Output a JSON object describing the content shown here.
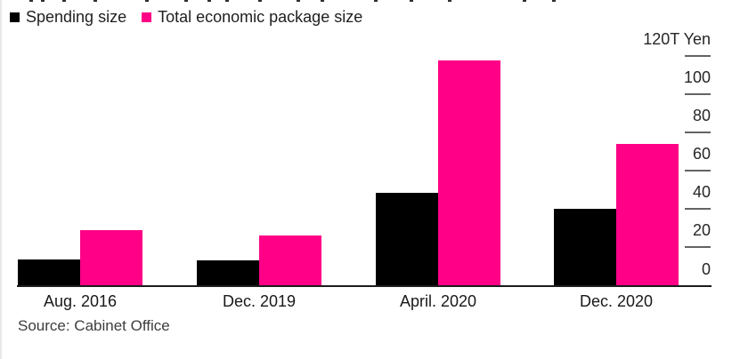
{
  "page": {
    "background": "#ffffff",
    "left_edge_color": "#e9e9e9"
  },
  "legend": {
    "items": [
      {
        "label": "Spending size",
        "color": "#000000",
        "swatch_icon": "square-swatch-icon"
      },
      {
        "label": "Total economic package size",
        "color": "#ff0087",
        "swatch_icon": "square-swatch-icon"
      }
    ]
  },
  "chart_data": {
    "type": "bar",
    "title": "",
    "categories": [
      "Aug. 2016",
      "Dec. 2019",
      "April. 2020",
      "Dec. 2020"
    ],
    "series": [
      {
        "name": "Spending size",
        "color": "#000000",
        "values": [
          13.5,
          13,
          48,
          40
        ]
      },
      {
        "name": "Total economic package size",
        "color": "#ff0087",
        "values": [
          28.5,
          26,
          117,
          73.5
        ]
      }
    ],
    "xlabel": "",
    "ylabel": "",
    "unit": "T Yen",
    "ylim": [
      0,
      120
    ],
    "yticks": [
      0,
      20,
      40,
      60,
      80,
      100,
      120
    ],
    "ytick_labels": [
      "0",
      "20",
      "40",
      "60",
      "80",
      "100",
      "120T Yen"
    ],
    "y_axis_side": "right",
    "grid": false,
    "legend_position": "top-left"
  },
  "source": {
    "label": "Source: Cabinet Office"
  },
  "colors": {
    "bar_black": "#000000",
    "bar_pink": "#ff0087",
    "axis_line": "#1c1c1c",
    "tick_dash": "#646464",
    "tick_text": "#262626",
    "category_text": "#191919",
    "source_text": "#3d3d3d"
  }
}
